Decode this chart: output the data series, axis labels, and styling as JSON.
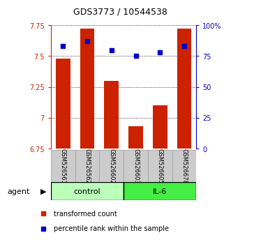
{
  "title": "GDS3773 / 10544538",
  "samples": [
    "GSM526561",
    "GSM526562",
    "GSM526602",
    "GSM526603",
    "GSM526605",
    "GSM526678"
  ],
  "red_values": [
    7.48,
    7.72,
    7.3,
    6.93,
    7.1,
    7.72
  ],
  "blue_values": [
    83,
    87,
    80,
    75,
    78,
    83
  ],
  "ylim_left": [
    6.75,
    7.75
  ],
  "ylim_right": [
    0,
    100
  ],
  "yticks_left": [
    6.75,
    7.0,
    7.25,
    7.5,
    7.75
  ],
  "yticks_right": [
    0,
    25,
    50,
    75,
    100
  ],
  "ytick_left_labels": [
    "6.75",
    "7",
    "7.25",
    "7.5",
    "7.75"
  ],
  "ytick_right_labels": [
    "0",
    "25",
    "50",
    "75",
    "100%"
  ],
  "bar_bottom": 6.75,
  "bar_color": "#cc2200",
  "dot_color": "#0000cc",
  "control_label": "control",
  "il6_label": "IL-6",
  "agent_label": "agent",
  "control_color": "#bbffbb",
  "il6_color": "#44ee44",
  "group_border_color": "#000000",
  "sample_box_color": "#cccccc",
  "sample_box_edge": "#999999",
  "legend_bar_label": "transformed count",
  "legend_dot_label": "percentile rank within the sample",
  "grid_color": "#000000",
  "title_color": "#000000",
  "left_axis_color": "#cc2200",
  "right_axis_color": "#0000cc",
  "bar_width": 0.6
}
